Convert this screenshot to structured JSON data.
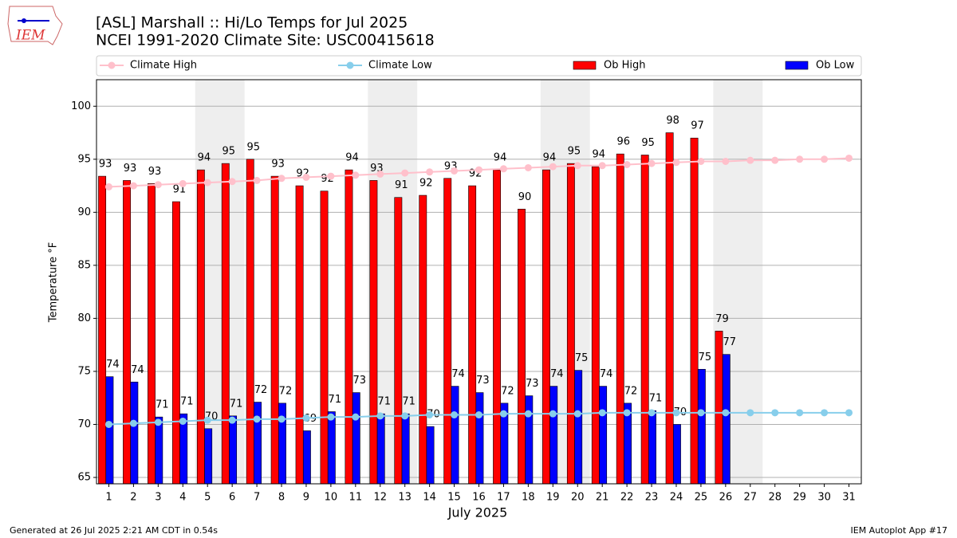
{
  "chart_data": {
    "type": "bar",
    "logo_text": "IEM",
    "title": "[ASL] Marshall :: Hi/Lo Temps for Jul 2025",
    "subtitle": "NCEI 1991-2020 Climate Site: USC00415618",
    "x_label": "July 2025",
    "y_label": "Temperature °F",
    "footer_left": "Generated at 26 Jul 2025 2:21 AM CDT in 0.54s",
    "footer_right": "IEM Autoplot App #17",
    "x": [
      1,
      2,
      3,
      4,
      5,
      6,
      7,
      8,
      9,
      10,
      11,
      12,
      13,
      14,
      15,
      16,
      17,
      18,
      19,
      20,
      21,
      22,
      23,
      24,
      25,
      26,
      27,
      28,
      29,
      30,
      31
    ],
    "xlim": [
      0.5,
      31.5
    ],
    "xticks": [
      1,
      2,
      3,
      4,
      5,
      6,
      7,
      8,
      9,
      10,
      11,
      12,
      13,
      14,
      15,
      16,
      17,
      18,
      19,
      20,
      21,
      22,
      23,
      24,
      25,
      26,
      27,
      28,
      29,
      30,
      31
    ],
    "ylim": [
      64.4,
      102.5
    ],
    "yticks": [
      65,
      70,
      75,
      80,
      85,
      90,
      95,
      100
    ],
    "grid": true,
    "weekend_shading": [
      [
        5,
        6
      ],
      [
        12,
        13
      ],
      [
        19,
        20
      ],
      [
        26,
        27
      ]
    ],
    "series": [
      {
        "name": "Climate High",
        "kind": "line",
        "color": "#ffc0cb",
        "values": [
          92.4,
          92.5,
          92.6,
          92.7,
          92.8,
          92.9,
          93.0,
          93.2,
          93.3,
          93.4,
          93.5,
          93.6,
          93.7,
          93.8,
          93.9,
          94.0,
          94.1,
          94.2,
          94.3,
          94.4,
          94.4,
          94.5,
          94.6,
          94.7,
          94.8,
          94.8,
          94.9,
          94.9,
          95.0,
          95.0,
          95.1
        ]
      },
      {
        "name": "Climate Low",
        "kind": "line",
        "color": "#87ceeb",
        "values": [
          70.0,
          70.1,
          70.2,
          70.3,
          70.4,
          70.4,
          70.5,
          70.5,
          70.6,
          70.7,
          70.7,
          70.8,
          70.8,
          70.9,
          70.9,
          70.9,
          71.0,
          71.0,
          71.0,
          71.0,
          71.1,
          71.1,
          71.1,
          71.1,
          71.1,
          71.1,
          71.1,
          71.1,
          71.1,
          71.1,
          71.1
        ]
      },
      {
        "name": "Ob High",
        "kind": "bar",
        "color": "#ff0000",
        "values": [
          93.4,
          93.0,
          92.7,
          91.0,
          94.0,
          94.6,
          95.0,
          93.4,
          92.5,
          92.0,
          94.0,
          93.0,
          91.4,
          91.6,
          93.2,
          92.5,
          94.0,
          90.3,
          94.0,
          94.6,
          94.3,
          95.5,
          95.4,
          97.5,
          97.0,
          78.8,
          null,
          null,
          null,
          null,
          null
        ],
        "value_labels": [
          93,
          93,
          93,
          91,
          94,
          95,
          95,
          93,
          92,
          92,
          94,
          93,
          91,
          92,
          93,
          92,
          94,
          90,
          94,
          95,
          94,
          96,
          95,
          98,
          97,
          79,
          null,
          null,
          null,
          null,
          null
        ]
      },
      {
        "name": "Ob Low",
        "kind": "bar",
        "color": "#0000ff",
        "values": [
          74.5,
          74.0,
          70.7,
          71.0,
          69.6,
          70.8,
          72.1,
          72.0,
          69.4,
          71.2,
          73.0,
          71.0,
          71.0,
          69.8,
          73.6,
          73.0,
          72.0,
          72.7,
          73.6,
          75.1,
          73.6,
          72.0,
          71.3,
          70.0,
          75.2,
          76.6,
          null,
          null,
          null,
          null,
          null
        ],
        "value_labels": [
          74,
          74,
          71,
          71,
          70,
          71,
          72,
          72,
          69,
          71,
          73,
          71,
          71,
          70,
          74,
          73,
          72,
          73,
          74,
          75,
          74,
          72,
          71,
          70,
          75,
          77,
          null,
          null,
          null,
          null,
          null
        ]
      }
    ]
  }
}
